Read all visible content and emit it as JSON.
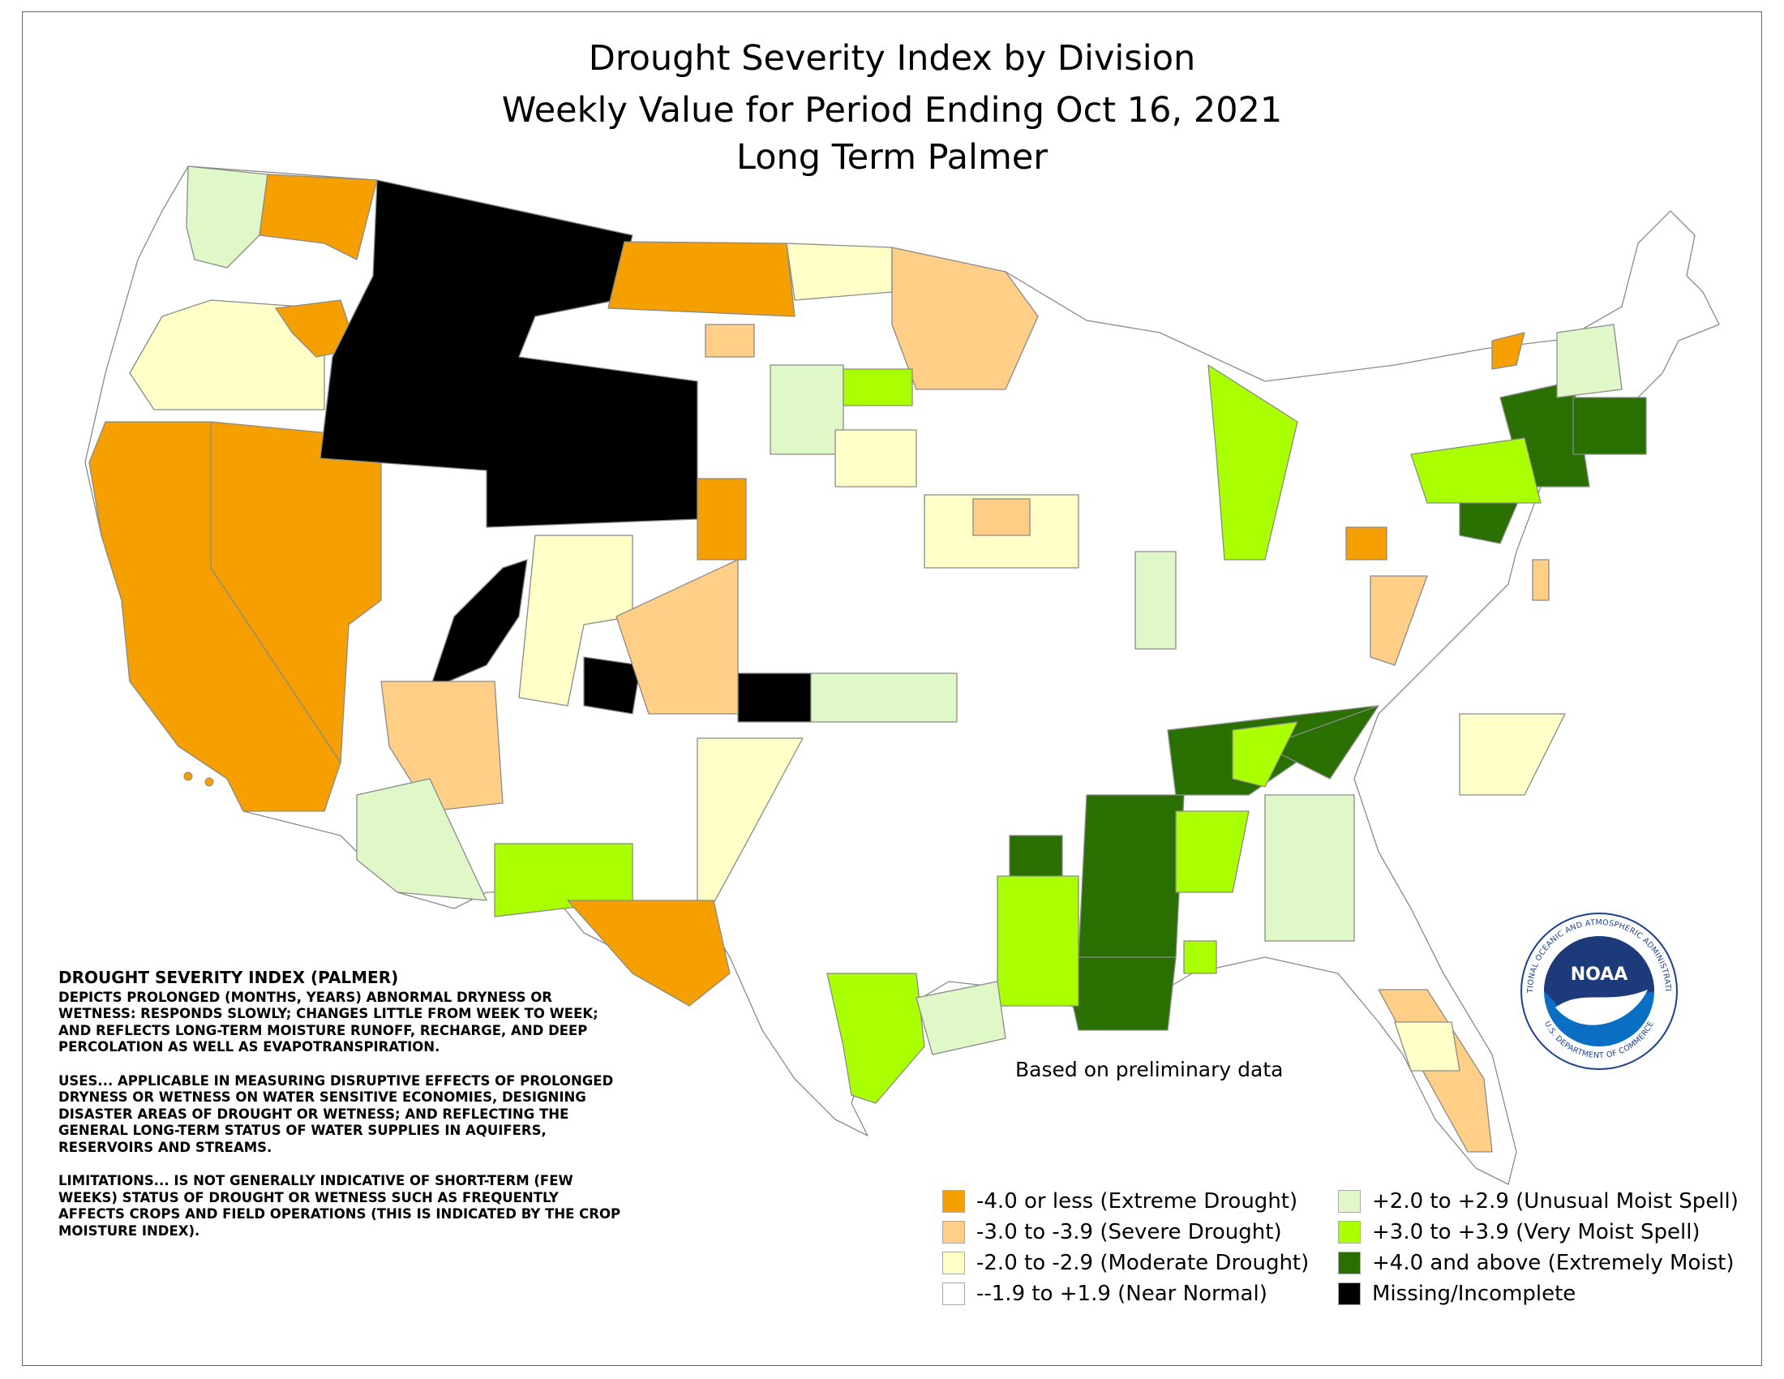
{
  "title": {
    "line1": "Drought Severity Index by Division",
    "line2": "Weekly Value for Period Ending Oct 16, 2021",
    "line3": "Long Term Palmer"
  },
  "note": "Based on preliminary data",
  "description": {
    "heading": "DROUGHT SEVERITY INDEX (PALMER)",
    "depicts": "DEPICTS PROLONGED (MONTHS, YEARS) ABNORMAL DRYNESS OR WETNESS: RESPONDS SLOWLY; CHANGES LITTLE FROM WEEK TO WEEK; AND REFLECTS LONG-TERM MOISTURE RUNOFF, RECHARGE, AND DEEP PERCOLATION AS WELL AS EVAPOTRANSPIRATION.",
    "uses": "USES... APPLICABLE IN MEASURING DISRUPTIVE EFFECTS OF PROLONGED DRYNESS OR WETNESS ON WATER SENSITIVE ECONOMIES, DESIGNING DISASTER AREAS OF DROUGHT OR WETNESS; AND REFLECTING THE GENERAL LONG-TERM STATUS OF WATER SUPPLIES IN AQUIFERS, RESERVOIRS AND STREAMS.",
    "limitations": "LIMITATIONS... IS NOT GENERALLY INDICATIVE OF SHORT-TERM (FEW WEEKS) STATUS OF DROUGHT OR WETNESS SUCH AS FREQUENTLY AFFECTS CROPS AND FIELD OPERATIONS (THIS IS INDICATED BY THE CROP MOISTURE INDEX)."
  },
  "legend": [
    {
      "label": "-4.0 or less (Extreme Drought)",
      "color": "#f5a000"
    },
    {
      "label": "-3.0 to -3.9 (Severe Drought)",
      "color": "#ffcf87"
    },
    {
      "label": "-2.0 to -2.9 (Moderate Drought)",
      "color": "#ffffc8"
    },
    {
      "label": "--1.9 to +1.9 (Near Normal)",
      "color": "#ffffff"
    },
    {
      "label": "+2.0 to +2.9 (Unusual Moist Spell)",
      "color": "#e0f8c8"
    },
    {
      "label": "+3.0 to +3.9 (Very Moist Spell)",
      "color": "#aaff00"
    },
    {
      "label": "+4.0 and above (Extremely Moist)",
      "color": "#2a7000"
    },
    {
      "label": "Missing/Incomplete",
      "color": "#000000"
    }
  ],
  "logo": {
    "text": "NOAA",
    "ring_top": "NATIONAL OCEANIC AND ATMOSPHERIC ADMINISTRATION",
    "ring_bottom": "U.S. DEPARTMENT OF COMMERCE"
  }
}
